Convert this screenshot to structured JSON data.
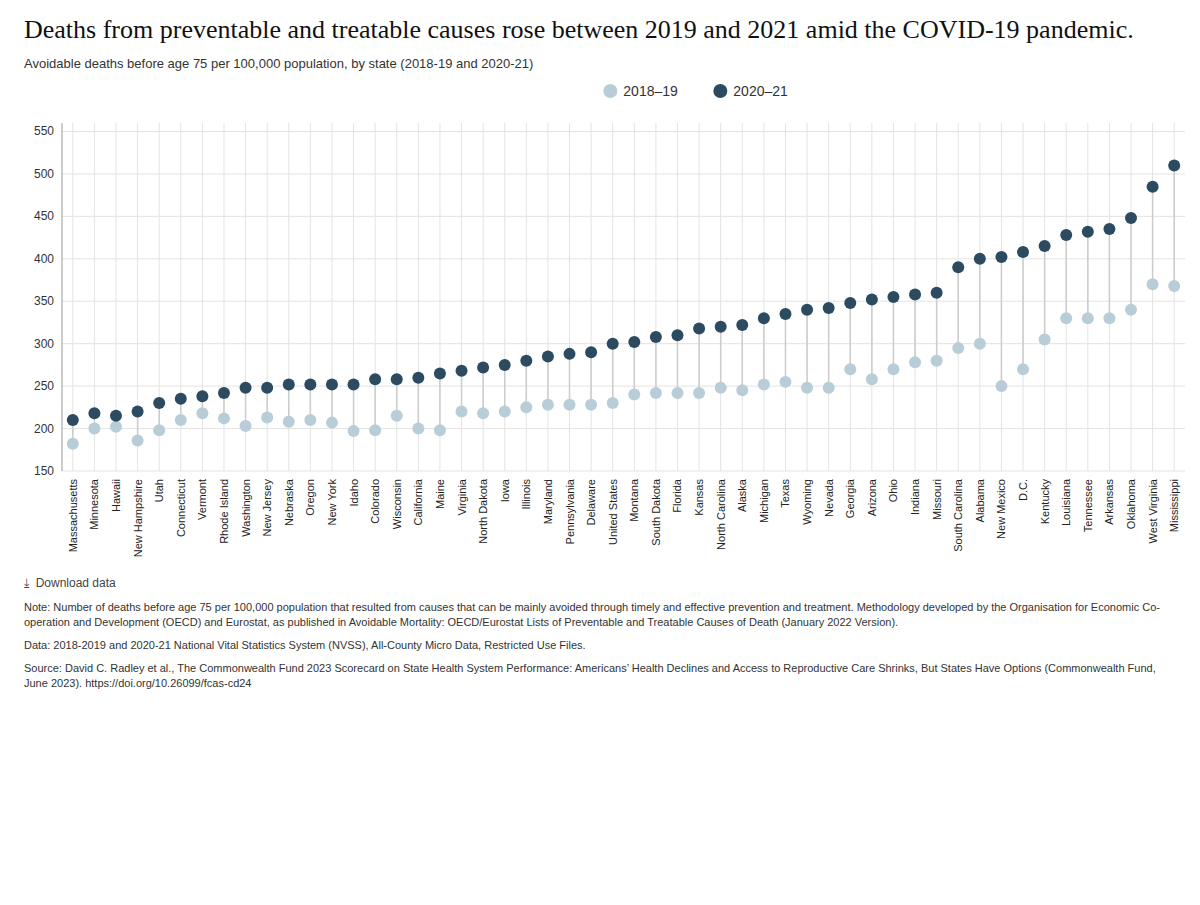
{
  "chart_data": {
    "type": "dot",
    "title": "Deaths from preventable and treatable causes rose between 2019 and 2021 amid the COVID-19 pandemic.",
    "subtitle": "Avoidable deaths before age 75 per 100,000 population, by state (2018-19 and 2020-21)",
    "annotations": [
      "⤓  Download data",
      "Note: Number of deaths before age 75 per 100,000 population that resulted from causes that can be mainly avoided through timely and effective prevention and treatment. Methodology developed by the Organisation for Economic Co-operation and Development (OECD) and Eurostat, as published in Avoidable Mortality: OECD/Eurostat Lists of Preventable and Treatable Causes of Death (January 2022 Version).",
      "Data: 2018-2019 and 2020-21 National Vital Statistics System (NVSS), All-County Micro Data, Restricted Use Files.",
      "Source: David C. Radley et al., The Commonwealth Fund 2023 Scorecard on State Health System Performance: Americans’ Health Declines and Access to Reproductive Care Shrinks, But States Have Options (Commonwealth Fund, June 2023). https://doi.org/10.26099/fcas-cd24"
    ],
    "categories": [
      "Massachusetts",
      "Minnesota",
      "Hawaii",
      "New Hampshire",
      "Utah",
      "Connecticut",
      "Vermont",
      "Rhode Island",
      "Washington",
      "New Jersey",
      "Nebraska",
      "Oregon",
      "New York",
      "Idaho",
      "Colorado",
      "Wisconsin",
      "California",
      "Maine",
      "Virginia",
      "North Dakota",
      "Iowa",
      "Illinois",
      "Maryland",
      "Pennsylvania",
      "Delaware",
      "United States",
      "Montana",
      "South Dakota",
      "Florida",
      "Kansas",
      "North Carolina",
      "Alaska",
      "Michigan",
      "Texas",
      "Wyoming",
      "Nevada",
      "Georgia",
      "Arizona",
      "Ohio",
      "Indiana",
      "Missouri",
      "South Carolina",
      "Alabama",
      "New Mexico",
      "D.C.",
      "Kentucky",
      "Louisiana",
      "Tennessee",
      "Arkansas",
      "Oklahoma",
      "West Virginia",
      "Mississippi"
    ],
    "series": [
      {
        "name": "2018–19",
        "color": "#b8cdd8",
        "marker": "circle",
        "values": [
          182,
          200,
          202,
          186,
          198,
          210,
          218,
          212,
          203,
          213,
          208,
          210,
          207,
          197,
          198,
          215,
          200,
          198,
          220,
          218,
          220,
          225,
          228,
          228,
          228,
          230,
          240,
          242,
          242,
          242,
          248,
          245,
          252,
          255,
          248,
          248,
          270,
          258,
          270,
          278,
          280,
          295,
          300,
          250,
          270,
          305,
          330,
          330,
          330,
          340,
          370,
          368
        ]
      },
      {
        "name": "2020–21",
        "color": "#2c4a60",
        "marker": "circle",
        "values": [
          210,
          218,
          215,
          220,
          230,
          235,
          238,
          242,
          248,
          248,
          252,
          252,
          252,
          252,
          258,
          258,
          260,
          265,
          268,
          272,
          275,
          280,
          285,
          288,
          290,
          300,
          302,
          308,
          310,
          318,
          320,
          322,
          330,
          335,
          340,
          342,
          348,
          352,
          355,
          358,
          360,
          390,
          400,
          402,
          408,
          415,
          428,
          432,
          435,
          448,
          485,
          510
        ]
      }
    ],
    "ylim": [
      150,
      560
    ],
    "yticks": [
      150,
      200,
      250,
      300,
      350,
      400,
      450,
      500,
      550
    ],
    "grid": true,
    "legend": "top"
  }
}
